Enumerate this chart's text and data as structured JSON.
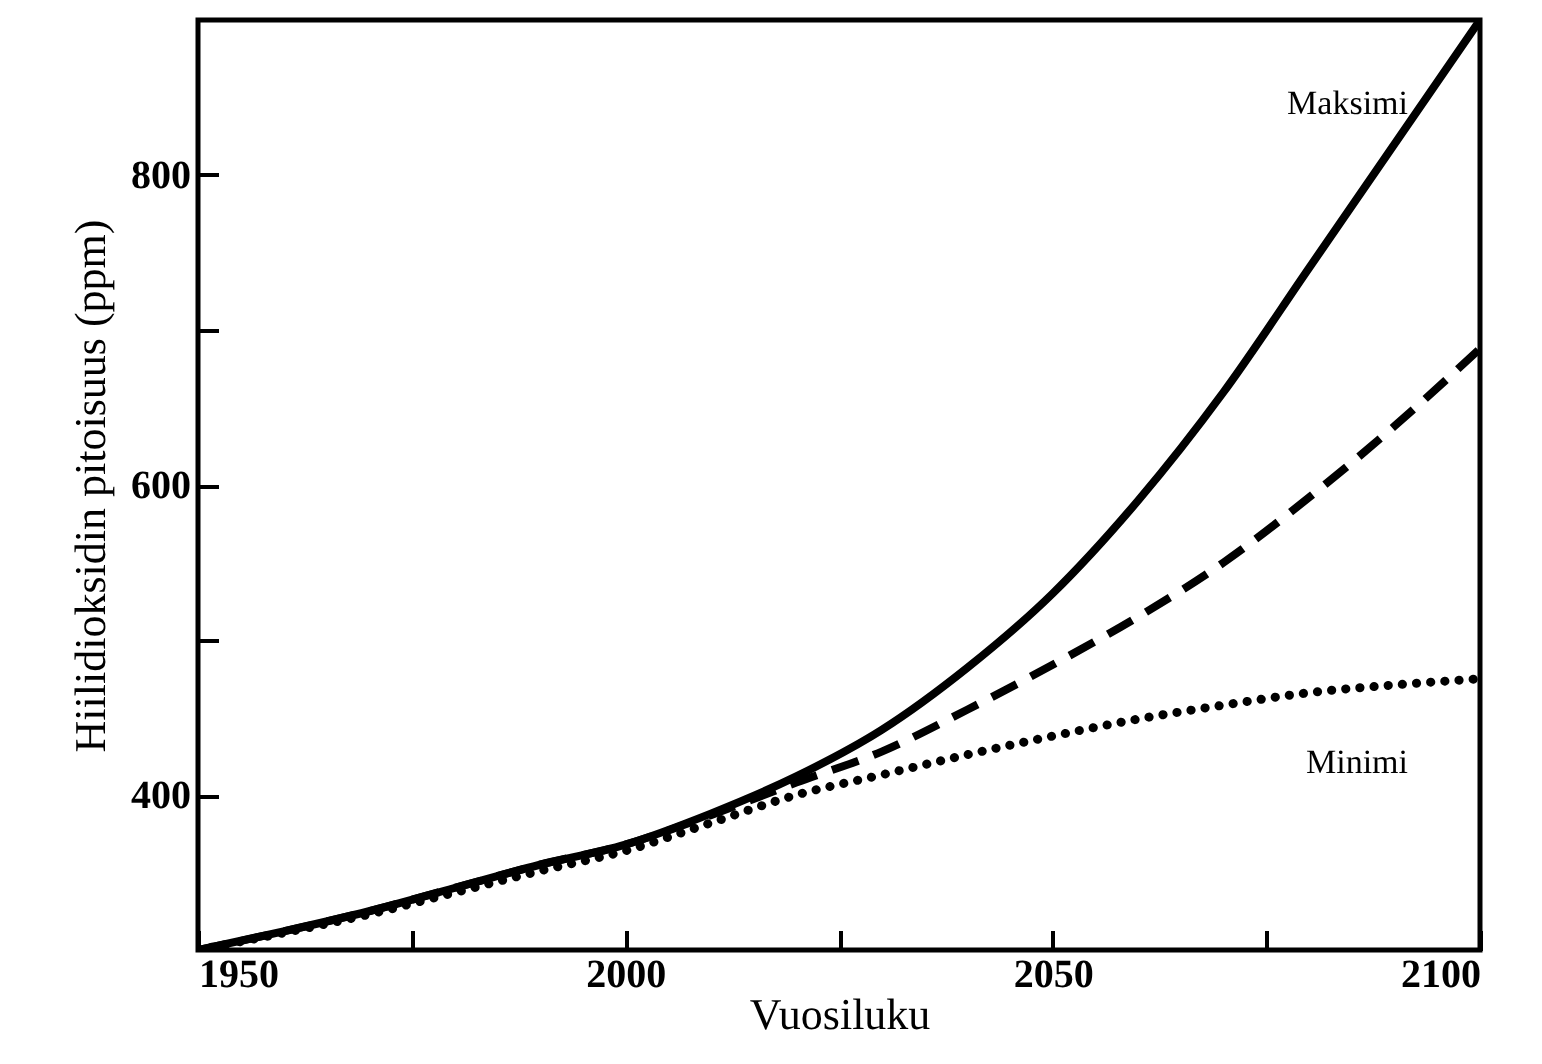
{
  "chart_data": {
    "type": "line",
    "xlabel": "Vuosiluku",
    "ylabel": "Hiilidioksidin pitoisuus (ppm)",
    "x": [
      1950,
      1960,
      1970,
      1980,
      1990,
      2000,
      2010,
      2020,
      2030,
      2040,
      2050,
      2060,
      2070,
      2080,
      2090,
      2100
    ],
    "series": [
      {
        "name": "Maksimi",
        "color": "#000000",
        "line_style": "solid",
        "values": [
          300,
          312,
          325,
          340,
          355,
          368,
          388,
          412,
          442,
          482,
          530,
          590,
          660,
          740,
          820,
          900
        ]
      },
      {
        "color": "#000000",
        "line_style": "dashed",
        "values": [
          300,
          312,
          325,
          340,
          355,
          368,
          387,
          408,
          428,
          455,
          484,
          515,
          550,
          592,
          638,
          688
        ]
      },
      {
        "name": "Minimi",
        "color": "#000000",
        "line_style": "dotted",
        "values": [
          300,
          311,
          323,
          337,
          351,
          364,
          382,
          400,
          413,
          426,
          438,
          449,
          458,
          466,
          471,
          475
        ]
      }
    ],
    "xlim": [
      1950,
      2100
    ],
    "ylim": [
      300,
      900
    ],
    "xticks": [
      1950,
      {
        "value": 1975,
        "label": null
      },
      2000,
      {
        "value": 2025,
        "label": null
      },
      2050,
      {
        "value": 2075,
        "label": null
      },
      2100
    ],
    "yticks": [
      {
        "value": 500,
        "label": null
      },
      400,
      600,
      {
        "value": 700,
        "label": null
      },
      800
    ]
  }
}
